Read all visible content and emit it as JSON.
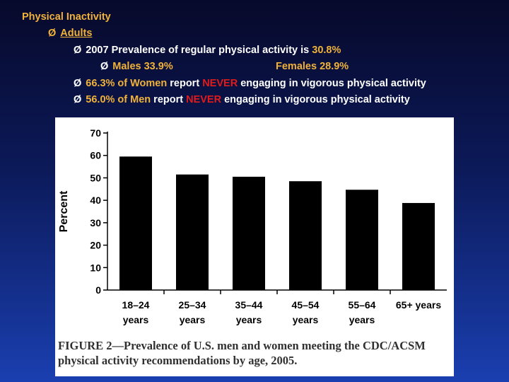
{
  "slide": {
    "title": "Physical Inactivity",
    "bullet_marker": "Ø",
    "adults_label": "Adults",
    "prevalence_prefix": "2007 Prevalence of regular physical activity is",
    "prevalence_value": "30.8%",
    "males_label": "Males 33.9%",
    "females_label": "Females 28.9%",
    "women_stat": "66.3% of Women",
    "men_stat": "56.0% of Men",
    "report_word": "report",
    "never_word": "NEVER",
    "engaging_text": "engaging in vigorous physical activity"
  },
  "colors": {
    "highlight": "#f0b23a",
    "never": "#e01b1b",
    "bar": "#000000"
  },
  "chart_data": {
    "type": "bar",
    "categories": [
      "18–24 years",
      "25–34 years",
      "35–44 years",
      "45–54 years",
      "55–64 years",
      "65+ years"
    ],
    "category_lines": [
      [
        "18–24",
        "years"
      ],
      [
        "25–34",
        "years"
      ],
      [
        "35–44",
        "years"
      ],
      [
        "45–54",
        "years"
      ],
      [
        "55–64",
        "years"
      ],
      [
        "65+ years",
        ""
      ]
    ],
    "values": [
      59.5,
      51.5,
      50.5,
      48.5,
      44.7,
      38.8
    ],
    "ylabel": "Percent",
    "xlabel": "",
    "ylim": [
      0,
      70
    ],
    "yticks": [
      0,
      10,
      20,
      30,
      40,
      50,
      60,
      70
    ],
    "grid": false,
    "legend": "none"
  },
  "figure_caption": "FIGURE 2—Prevalence of U.S. men and women meeting the CDC/ACSM physical activity recommendations by age, 2005."
}
